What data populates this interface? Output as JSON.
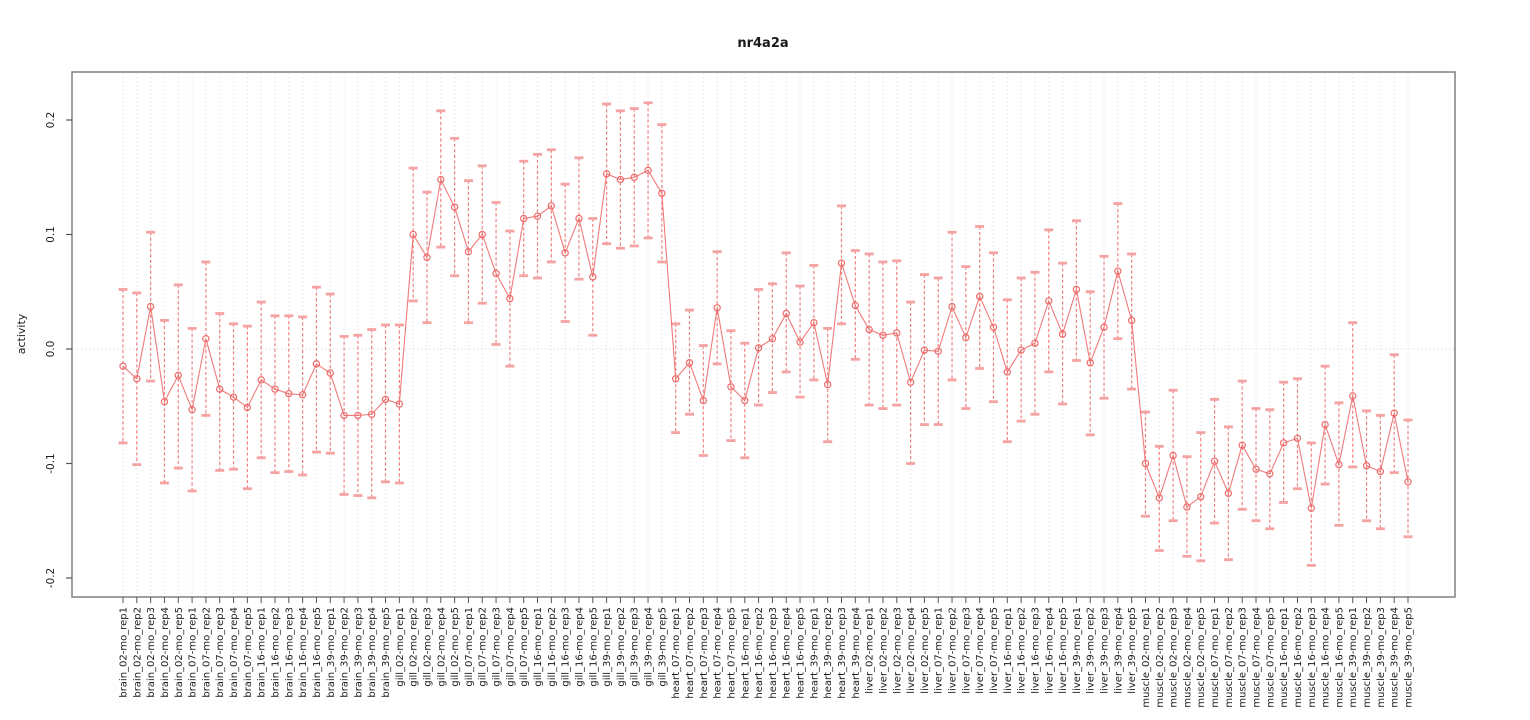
{
  "chart_data": {
    "type": "line",
    "subtype": "error-bar-series",
    "title": "nr4a2a",
    "xlabel": "",
    "ylabel": "activity",
    "ylim": [
      -0.217,
      0.242
    ],
    "yticks": [
      0.2,
      0.1,
      0.0,
      -0.1,
      -0.2
    ],
    "ytick_labels": [
      "0.2",
      "0.1",
      "0.0",
      "-0.1",
      "-0.2"
    ],
    "grid": "vertical dotted line per category, dotted horizontal line at zero",
    "legend": "none",
    "colors": {
      "series": "#ee6b6b",
      "cap": "#f5a2a2",
      "grid": "#dcdcdc",
      "zero_line": "#d0d0d0",
      "box": "#808080",
      "tick": "#555555",
      "text": "#1a1a1a"
    },
    "points": [
      {
        "label": "brain_02-mo_rep1",
        "value": -0.015,
        "lo": -0.082,
        "hi": 0.052
      },
      {
        "label": "brain_02-mo_rep2",
        "value": -0.026,
        "lo": -0.101,
        "hi": 0.049
      },
      {
        "label": "brain_02-mo_rep3",
        "value": 0.037,
        "lo": -0.028,
        "hi": 0.102
      },
      {
        "label": "brain_02-mo_rep4",
        "value": -0.046,
        "lo": -0.117,
        "hi": 0.025
      },
      {
        "label": "brain_02-mo_rep5",
        "value": -0.023,
        "lo": -0.104,
        "hi": 0.056
      },
      {
        "label": "brain_07-mo_rep1",
        "value": -0.053,
        "lo": -0.124,
        "hi": 0.018
      },
      {
        "label": "brain_07-mo_rep2",
        "value": 0.009,
        "lo": -0.058,
        "hi": 0.076
      },
      {
        "label": "brain_07-mo_rep3",
        "value": -0.035,
        "lo": -0.106,
        "hi": 0.031
      },
      {
        "label": "brain_07-mo_rep4",
        "value": -0.042,
        "lo": -0.105,
        "hi": 0.022
      },
      {
        "label": "brain_07-mo_rep5",
        "value": -0.051,
        "lo": -0.122,
        "hi": 0.02
      },
      {
        "label": "brain_16-mo_rep1",
        "value": -0.027,
        "lo": -0.095,
        "hi": 0.041
      },
      {
        "label": "brain_16-mo_rep2",
        "value": -0.035,
        "lo": -0.108,
        "hi": 0.029
      },
      {
        "label": "brain_16-mo_rep3",
        "value": -0.039,
        "lo": -0.107,
        "hi": 0.029
      },
      {
        "label": "brain_16-mo_rep4",
        "value": -0.04,
        "lo": -0.11,
        "hi": 0.028
      },
      {
        "label": "brain_16-mo_rep5",
        "value": -0.013,
        "lo": -0.09,
        "hi": 0.054
      },
      {
        "label": "brain_39-mo_rep1",
        "value": -0.021,
        "lo": -0.091,
        "hi": 0.048
      },
      {
        "label": "brain_39-mo_rep2",
        "value": -0.058,
        "lo": -0.127,
        "hi": 0.011
      },
      {
        "label": "brain_39-mo_rep3",
        "value": -0.058,
        "lo": -0.128,
        "hi": 0.012
      },
      {
        "label": "brain_39-mo_rep4",
        "value": -0.057,
        "lo": -0.13,
        "hi": 0.017
      },
      {
        "label": "brain_39-mo_rep5",
        "value": -0.044,
        "lo": -0.116,
        "hi": 0.021
      },
      {
        "label": "gill_02-mo_rep1",
        "value": -0.048,
        "lo": -0.117,
        "hi": 0.021
      },
      {
        "label": "gill_02-mo_rep2",
        "value": 0.1,
        "lo": 0.042,
        "hi": 0.158
      },
      {
        "label": "gill_02-mo_rep3",
        "value": 0.08,
        "lo": 0.023,
        "hi": 0.137
      },
      {
        "label": "gill_02-mo_rep4",
        "value": 0.148,
        "lo": 0.089,
        "hi": 0.208
      },
      {
        "label": "gill_02-mo_rep5",
        "value": 0.124,
        "lo": 0.064,
        "hi": 0.184
      },
      {
        "label": "gill_07-mo_rep1",
        "value": 0.085,
        "lo": 0.023,
        "hi": 0.147
      },
      {
        "label": "gill_07-mo_rep2",
        "value": 0.1,
        "lo": 0.04,
        "hi": 0.16
      },
      {
        "label": "gill_07-mo_rep3",
        "value": 0.066,
        "lo": 0.004,
        "hi": 0.128
      },
      {
        "label": "gill_07-mo_rep4",
        "value": 0.044,
        "lo": -0.015,
        "hi": 0.103
      },
      {
        "label": "gill_07-mo_rep5",
        "value": 0.114,
        "lo": 0.064,
        "hi": 0.164
      },
      {
        "label": "gill_16-mo_rep1",
        "value": 0.116,
        "lo": 0.062,
        "hi": 0.17
      },
      {
        "label": "gill_16-mo_rep2",
        "value": 0.125,
        "lo": 0.076,
        "hi": 0.174
      },
      {
        "label": "gill_16-mo_rep3",
        "value": 0.084,
        "lo": 0.024,
        "hi": 0.144
      },
      {
        "label": "gill_16-mo_rep4",
        "value": 0.114,
        "lo": 0.061,
        "hi": 0.167
      },
      {
        "label": "gill_16-mo_rep5",
        "value": 0.063,
        "lo": 0.012,
        "hi": 0.114
      },
      {
        "label": "gill_39-mo_rep1",
        "value": 0.153,
        "lo": 0.092,
        "hi": 0.214
      },
      {
        "label": "gill_39-mo_rep2",
        "value": 0.148,
        "lo": 0.088,
        "hi": 0.208
      },
      {
        "label": "gill_39-mo_rep3",
        "value": 0.15,
        "lo": 0.09,
        "hi": 0.21
      },
      {
        "label": "gill_39-mo_rep4",
        "value": 0.156,
        "lo": 0.097,
        "hi": 0.215
      },
      {
        "label": "gill_39-mo_rep5",
        "value": 0.136,
        "lo": 0.076,
        "hi": 0.196
      },
      {
        "label": "heart_07-mo_rep1",
        "value": -0.026,
        "lo": -0.073,
        "hi": 0.022
      },
      {
        "label": "heart_07-mo_rep2",
        "value": -0.012,
        "lo": -0.057,
        "hi": 0.034
      },
      {
        "label": "heart_07-mo_rep3",
        "value": -0.045,
        "lo": -0.093,
        "hi": 0.003
      },
      {
        "label": "heart_07-mo_rep4",
        "value": 0.036,
        "lo": -0.013,
        "hi": 0.085
      },
      {
        "label": "heart_07-mo_rep5",
        "value": -0.033,
        "lo": -0.08,
        "hi": 0.016
      },
      {
        "label": "heart_16-mo_rep1",
        "value": -0.045,
        "lo": -0.095,
        "hi": 0.005
      },
      {
        "label": "heart_16-mo_rep2",
        "value": 0.001,
        "lo": -0.049,
        "hi": 0.052
      },
      {
        "label": "heart_16-mo_rep3",
        "value": 0.009,
        "lo": -0.038,
        "hi": 0.057
      },
      {
        "label": "heart_16-mo_rep4",
        "value": 0.031,
        "lo": -0.02,
        "hi": 0.084
      },
      {
        "label": "heart_16-mo_rep5",
        "value": 0.006,
        "lo": -0.042,
        "hi": 0.055
      },
      {
        "label": "heart_39-mo_rep1",
        "value": 0.023,
        "lo": -0.027,
        "hi": 0.073
      },
      {
        "label": "heart_39-mo_rep2",
        "value": -0.031,
        "lo": -0.081,
        "hi": 0.018
      },
      {
        "label": "heart_39-mo_rep3",
        "value": 0.075,
        "lo": 0.022,
        "hi": 0.125
      },
      {
        "label": "heart_39-mo_rep4",
        "value": 0.038,
        "lo": -0.009,
        "hi": 0.086
      },
      {
        "label": "liver_02-mo_rep1",
        "value": 0.017,
        "lo": -0.049,
        "hi": 0.083
      },
      {
        "label": "liver_02-mo_rep2",
        "value": 0.012,
        "lo": -0.052,
        "hi": 0.076
      },
      {
        "label": "liver_02-mo_rep3",
        "value": 0.014,
        "lo": -0.049,
        "hi": 0.077
      },
      {
        "label": "liver_02-mo_rep4",
        "value": -0.029,
        "lo": -0.1,
        "hi": 0.041
      },
      {
        "label": "liver_02-mo_rep5",
        "value": -0.001,
        "lo": -0.066,
        "hi": 0.065
      },
      {
        "label": "liver_07-mo_rep1",
        "value": -0.002,
        "lo": -0.066,
        "hi": 0.062
      },
      {
        "label": "liver_07-mo_rep2",
        "value": 0.037,
        "lo": -0.027,
        "hi": 0.102
      },
      {
        "label": "liver_07-mo_rep3",
        "value": 0.01,
        "lo": -0.052,
        "hi": 0.072
      },
      {
        "label": "liver_07-mo_rep4",
        "value": 0.046,
        "lo": -0.017,
        "hi": 0.107
      },
      {
        "label": "liver_07-mo_rep5",
        "value": 0.019,
        "lo": -0.046,
        "hi": 0.084
      },
      {
        "label": "liver_16-mo_rep1",
        "value": -0.02,
        "lo": -0.081,
        "hi": 0.043
      },
      {
        "label": "liver_16-mo_rep2",
        "value": -0.001,
        "lo": -0.063,
        "hi": 0.062
      },
      {
        "label": "liver_16-mo_rep3",
        "value": 0.005,
        "lo": -0.057,
        "hi": 0.067
      },
      {
        "label": "liver_16-mo_rep4",
        "value": 0.042,
        "lo": -0.02,
        "hi": 0.104
      },
      {
        "label": "liver_16-mo_rep5",
        "value": 0.013,
        "lo": -0.048,
        "hi": 0.075
      },
      {
        "label": "liver_39-mo_rep1",
        "value": 0.052,
        "lo": -0.01,
        "hi": 0.112
      },
      {
        "label": "liver_39-mo_rep2",
        "value": -0.012,
        "lo": -0.075,
        "hi": 0.05
      },
      {
        "label": "liver_39-mo_rep3",
        "value": 0.019,
        "lo": -0.043,
        "hi": 0.081
      },
      {
        "label": "liver_39-mo_rep4",
        "value": 0.068,
        "lo": 0.009,
        "hi": 0.127
      },
      {
        "label": "liver_39-mo_rep5",
        "value": 0.025,
        "lo": -0.035,
        "hi": 0.083
      },
      {
        "label": "muscle_02-mo_rep1",
        "value": -0.1,
        "lo": -0.146,
        "hi": -0.055
      },
      {
        "label": "muscle_02-mo_rep2",
        "value": -0.13,
        "lo": -0.176,
        "hi": -0.085
      },
      {
        "label": "muscle_02-mo_rep3",
        "value": -0.093,
        "lo": -0.15,
        "hi": -0.036
      },
      {
        "label": "muscle_02-mo_rep4",
        "value": -0.138,
        "lo": -0.181,
        "hi": -0.094
      },
      {
        "label": "muscle_02-mo_rep5",
        "value": -0.129,
        "lo": -0.185,
        "hi": -0.073
      },
      {
        "label": "muscle_07-mo_rep1",
        "value": -0.098,
        "lo": -0.152,
        "hi": -0.044
      },
      {
        "label": "muscle_07-mo_rep2",
        "value": -0.126,
        "lo": -0.184,
        "hi": -0.068
      },
      {
        "label": "muscle_07-mo_rep3",
        "value": -0.084,
        "lo": -0.14,
        "hi": -0.028
      },
      {
        "label": "muscle_07-mo_rep4",
        "value": -0.105,
        "lo": -0.15,
        "hi": -0.052
      },
      {
        "label": "muscle_07-mo_rep5",
        "value": -0.109,
        "lo": -0.157,
        "hi": -0.053
      },
      {
        "label": "muscle_16-mo_rep1",
        "value": -0.082,
        "lo": -0.134,
        "hi": -0.029
      },
      {
        "label": "muscle_16-mo_rep2",
        "value": -0.078,
        "lo": -0.122,
        "hi": -0.026
      },
      {
        "label": "muscle_16-mo_rep3",
        "value": -0.139,
        "lo": -0.189,
        "hi": -0.082
      },
      {
        "label": "muscle_16-mo_rep4",
        "value": -0.066,
        "lo": -0.118,
        "hi": -0.015
      },
      {
        "label": "muscle_16-mo_rep5",
        "value": -0.101,
        "lo": -0.154,
        "hi": -0.047
      },
      {
        "label": "muscle_39-mo_rep1",
        "value": -0.041,
        "lo": -0.103,
        "hi": 0.023
      },
      {
        "label": "muscle_39-mo_rep2",
        "value": -0.102,
        "lo": -0.15,
        "hi": -0.054
      },
      {
        "label": "muscle_39-mo_rep3",
        "value": -0.107,
        "lo": -0.157,
        "hi": -0.058
      },
      {
        "label": "muscle_39-mo_rep4",
        "value": -0.056,
        "lo": -0.108,
        "hi": -0.005
      },
      {
        "label": "muscle_39-mo_rep5",
        "value": -0.116,
        "lo": -0.164,
        "hi": -0.062
      }
    ]
  }
}
